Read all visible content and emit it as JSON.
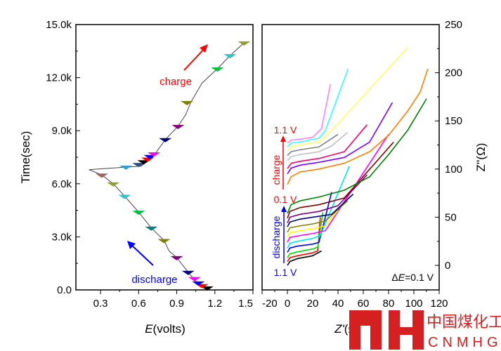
{
  "chart_data": [
    {
      "type": "line",
      "title": "",
      "xlabel_italic": "E",
      "xlabel_rest": "(volts)",
      "ylabel": "Time(sec)",
      "xlim": [
        0.106,
        1.5
      ],
      "ylim": [
        0,
        15000
      ],
      "xticks": [
        0.3,
        0.6,
        0.9,
        1.2,
        1.5
      ],
      "xtick_labels": [
        "0.3",
        "0.6",
        "0.9",
        "1.2",
        "1.5"
      ],
      "yticks": [
        0,
        3000,
        6000,
        9000,
        12000,
        15000
      ],
      "ytick_labels": [
        "0.0",
        "3.0k",
        "6.0k",
        "9.0k",
        "12.0k",
        "15.0k"
      ],
      "series": [
        {
          "name": "discharge",
          "color": "#444",
          "points": [
            [
              1.14,
              120
            ],
            [
              1.06,
              400
            ],
            [
              0.99,
              1000
            ],
            [
              0.9,
              1830
            ],
            [
              0.84,
              2200
            ],
            [
              0.8,
              2800
            ],
            [
              0.7,
              3500
            ],
            [
              0.6,
              4400
            ],
            [
              0.49,
              5300
            ],
            [
              0.4,
              6000
            ],
            [
              0.31,
              6500
            ],
            [
              0.21,
              6800
            ]
          ]
        },
        {
          "name": "charge",
          "color": "#444",
          "points": [
            [
              0.21,
              6800
            ],
            [
              0.62,
              7000
            ],
            [
              0.69,
              7400
            ],
            [
              0.74,
              7800
            ],
            [
              0.81,
              8500
            ],
            [
              0.91,
              9250
            ],
            [
              0.97,
              9900
            ],
            [
              1.01,
              10600
            ],
            [
              1.1,
              11700
            ],
            [
              1.22,
              12500
            ],
            [
              1.32,
              13250
            ],
            [
              1.43,
              13970
            ]
          ]
        }
      ],
      "markers": [
        {
          "E": 1.14,
          "t": 120,
          "color": "#000000"
        },
        {
          "E": 1.1,
          "t": 250,
          "color": "#ff0000"
        },
        {
          "E": 1.07,
          "t": 400,
          "color": "#0000ff"
        },
        {
          "E": 1.04,
          "t": 650,
          "color": "#ff00ff"
        },
        {
          "E": 0.99,
          "t": 1000,
          "color": "#000080"
        },
        {
          "E": 0.9,
          "t": 1830,
          "color": "#800080"
        },
        {
          "E": 0.8,
          "t": 2800,
          "color": "#808000"
        },
        {
          "E": 0.7,
          "t": 3500,
          "color": "#008080"
        },
        {
          "E": 0.6,
          "t": 4400,
          "color": "#00c040"
        },
        {
          "E": 0.49,
          "t": 5300,
          "color": "#30c0d0"
        },
        {
          "E": 0.4,
          "t": 6000,
          "color": "#90a030"
        },
        {
          "E": 0.31,
          "t": 6500,
          "color": "#a06060"
        },
        {
          "E": 0.5,
          "t": 6950,
          "color": "#30a0d0"
        },
        {
          "E": 0.6,
          "t": 7100,
          "color": "#305080"
        },
        {
          "E": 0.64,
          "t": 7250,
          "color": "#000000"
        },
        {
          "E": 0.67,
          "t": 7400,
          "color": "#ff0000"
        },
        {
          "E": 0.69,
          "t": 7550,
          "color": "#0000ff"
        },
        {
          "E": 0.72,
          "t": 7700,
          "color": "#ff00ff"
        },
        {
          "E": 0.81,
          "t": 8500,
          "color": "#000080"
        },
        {
          "E": 0.91,
          "t": 9250,
          "color": "#800080"
        },
        {
          "E": 0.98,
          "t": 10600,
          "color": "#808000"
        },
        {
          "E": 1.22,
          "t": 12500,
          "color": "#00c040"
        },
        {
          "E": 1.32,
          "t": 13250,
          "color": "#30c0d0"
        },
        {
          "E": 1.43,
          "t": 13970,
          "color": "#90a030"
        }
      ],
      "annotations": {
        "charge": "charge",
        "discharge": "discharge"
      },
      "charge_color": "#ff0000",
      "discharge_color": "#0000ff"
    },
    {
      "type": "line",
      "xlabel_italic": "Z'",
      "xlabel_rest": "(Ω)",
      "ylabel": "Z''(Ω)",
      "xlim": [
        -20,
        120
      ],
      "ylim": [
        -25.5,
        250
      ],
      "xticks": [
        -20,
        0,
        20,
        40,
        60,
        80,
        100,
        120
      ],
      "xtick_labels": [
        "-20",
        "0",
        "20",
        "40",
        "60",
        "80",
        "100",
        "120"
      ],
      "yticks": [
        0,
        50,
        100,
        150,
        200,
        250
      ],
      "ytick_labels": [
        "0",
        "50",
        "100",
        "150",
        "200",
        "250"
      ],
      "annotations": {
        "top_voltage": "1.1 V",
        "mid_voltage": "0.1 V",
        "bottom_voltage": "1.1 V",
        "charge": "charge",
        "discharge": "discharge",
        "delta_prefix": "Δ",
        "delta_italic": "E",
        "delta_rest": "=0.1 V"
      },
      "series": [
        {
          "name": "discharge-1",
          "color": "#000000",
          "points": [
            [
              0,
              0
            ],
            [
              2,
              4
            ],
            [
              8,
              7
            ],
            [
              20,
              10
            ],
            [
              27,
              15
            ]
          ]
        },
        {
          "name": "discharge-2",
          "color": "#ff0000",
          "points": [
            [
              0,
              4
            ],
            [
              2,
              8
            ],
            [
              8,
              10
            ],
            [
              20,
              13
            ],
            [
              24,
              15
            ],
            [
              26,
              50
            ]
          ]
        },
        {
          "name": "discharge-3",
          "color": "#00dd00",
          "points": [
            [
              0,
              8
            ],
            [
              2,
              12
            ],
            [
              8,
              14
            ],
            [
              20,
              17
            ],
            [
              24,
              19
            ],
            [
              28,
              55
            ]
          ]
        },
        {
          "name": "discharge-4",
          "color": "#0000ff",
          "points": [
            [
              0,
              13.5
            ],
            [
              2,
              18
            ],
            [
              8,
              20
            ],
            [
              20,
              22
            ],
            [
              25,
              24
            ],
            [
              35,
              76
            ]
          ]
        },
        {
          "name": "discharge-5",
          "color": "#00e5ff",
          "points": [
            [
              0,
              18
            ],
            [
              2,
              23
            ],
            [
              8,
              25
            ],
            [
              20,
              28
            ],
            [
              26,
              31
            ],
            [
              49,
              103
            ]
          ]
        },
        {
          "name": "discharge-6",
          "color": "#ff00ff",
          "points": [
            [
              0,
              24
            ],
            [
              2,
              29
            ],
            [
              10,
              31
            ],
            [
              20,
              33
            ],
            [
              30,
              36
            ],
            [
              80,
              136
            ]
          ]
        },
        {
          "name": "discharge-7",
          "color": "#ffff00",
          "points": [
            [
              0,
              29.5
            ],
            [
              2,
              34
            ],
            [
              10,
              36
            ],
            [
              20,
              38
            ],
            [
              30,
              41
            ],
            [
              40,
              57
            ]
          ]
        },
        {
          "name": "discharge-8",
          "color": "#808000",
          "points": [
            [
              0,
              34.5
            ],
            [
              2,
              39
            ],
            [
              10,
              41
            ],
            [
              20,
              43
            ],
            [
              30,
              46
            ],
            [
              47.6,
              67
            ]
          ]
        },
        {
          "name": "discharge-9",
          "color": "#000080",
          "points": [
            [
              0,
              40
            ],
            [
              2,
              45
            ],
            [
              10,
              48
            ],
            [
              20,
              50
            ],
            [
              35,
              53
            ],
            [
              52,
              74
            ]
          ]
        },
        {
          "name": "discharge-10",
          "color": "#800080",
          "points": [
            [
              0,
              44
            ],
            [
              2,
              50
            ],
            [
              10,
              53
            ],
            [
              25,
              56
            ],
            [
              40,
              62
            ],
            [
              63,
              94
            ]
          ]
        },
        {
          "name": "discharge-11",
          "color": "#800000",
          "points": [
            [
              0,
              49
            ],
            [
              2,
              56
            ],
            [
              10,
              60
            ],
            [
              25,
              63
            ],
            [
              45,
              70
            ],
            [
              84,
              128
            ]
          ]
        },
        {
          "name": "discharge-12",
          "color": "#008000",
          "points": [
            [
              0,
              54
            ],
            [
              3,
              63
            ],
            [
              10,
              67
            ],
            [
              25,
              71
            ],
            [
              45,
              78
            ],
            [
              65,
              92
            ],
            [
              80,
              115
            ],
            [
              95,
              140
            ],
            [
              110,
              173
            ]
          ]
        },
        {
          "name": "charge-1",
          "color": "#ff8000",
          "points": [
            [
              0,
              84
            ],
            [
              3,
              92
            ],
            [
              10,
              97
            ],
            [
              25,
              100
            ],
            [
              45,
              106
            ],
            [
              65,
              118
            ],
            [
              80,
              135
            ],
            [
              95,
              160
            ],
            [
              105,
              180
            ],
            [
              111,
              204
            ]
          ]
        },
        {
          "name": "charge-2",
          "color": "#8000ff",
          "points": [
            [
              0,
              95
            ],
            [
              3,
              101
            ],
            [
              10,
              104
            ],
            [
              25,
              107
            ],
            [
              45,
              112
            ],
            [
              65,
              128
            ],
            [
              83,
              169
            ]
          ]
        },
        {
          "name": "charge-3",
          "color": "#ff0066",
          "points": [
            [
              0,
              100.5
            ],
            [
              3,
              106
            ],
            [
              10,
              108
            ],
            [
              25,
              111
            ],
            [
              45,
              118
            ],
            [
              63,
              146
            ]
          ]
        },
        {
          "name": "charge-4",
          "color": "#c0c0c0",
          "points": [
            [
              0,
              109
            ],
            [
              3,
              113
            ],
            [
              10,
              115
            ],
            [
              25,
              118
            ],
            [
              35,
              124
            ],
            [
              47.6,
              138
            ]
          ]
        },
        {
          "name": "charge-5",
          "color": "#808080",
          "points": [
            [
              0,
              114
            ],
            [
              3,
              118
            ],
            [
              10,
              120
            ],
            [
              25,
              123
            ],
            [
              40,
              136
            ]
          ]
        },
        {
          "name": "charge-6",
          "color": "#ffff66",
          "points": [
            [
              0,
              119
            ],
            [
              3,
              123
            ],
            [
              10,
              125
            ],
            [
              25,
              128
            ],
            [
              35,
              140
            ],
            [
              95,
              226
            ]
          ]
        },
        {
          "name": "charge-7",
          "color": "#33ffff",
          "points": [
            [
              0,
              123
            ],
            [
              3,
              127
            ],
            [
              10,
              128
            ],
            [
              25,
              132
            ],
            [
              30,
              140
            ],
            [
              48,
              204
            ]
          ]
        },
        {
          "name": "charge-8",
          "color": "#ff80ff",
          "points": [
            [
              0,
              127
            ],
            [
              3,
              130
            ],
            [
              10,
              131
            ],
            [
              20,
              133
            ],
            [
              27,
              142
            ],
            [
              34,
              188
            ]
          ]
        }
      ]
    }
  ],
  "watermark": {
    "logo": "MH",
    "cn": "中国煤化工",
    "en": "CNMHG"
  }
}
